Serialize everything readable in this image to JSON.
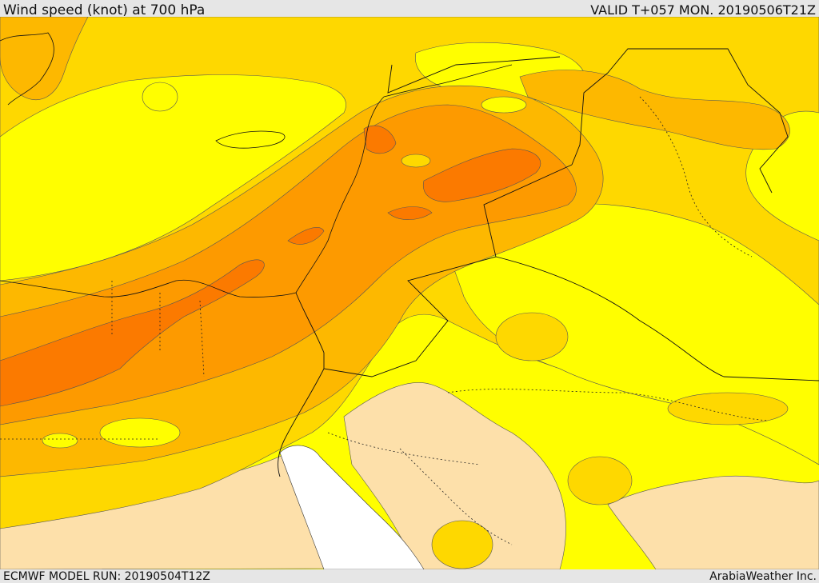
{
  "header": {
    "title": "Wind speed (knot) at 700 hPa",
    "valid": "VALID T+057 MON. 20190506T21Z"
  },
  "footer": {
    "model_run": "ECMWF MODEL RUN: 20190504T12Z",
    "credit": "ArabiaWeather Inc."
  },
  "colors": {
    "light_tan": "#fde0aa",
    "yellow": "#fffe00",
    "gold": "#fed800",
    "amber": "#fdb800",
    "orange": "#fd9a00",
    "dark_orange": "#fb7a00",
    "sea_no_data": "#ffffff",
    "border_line": "#000000"
  }
}
